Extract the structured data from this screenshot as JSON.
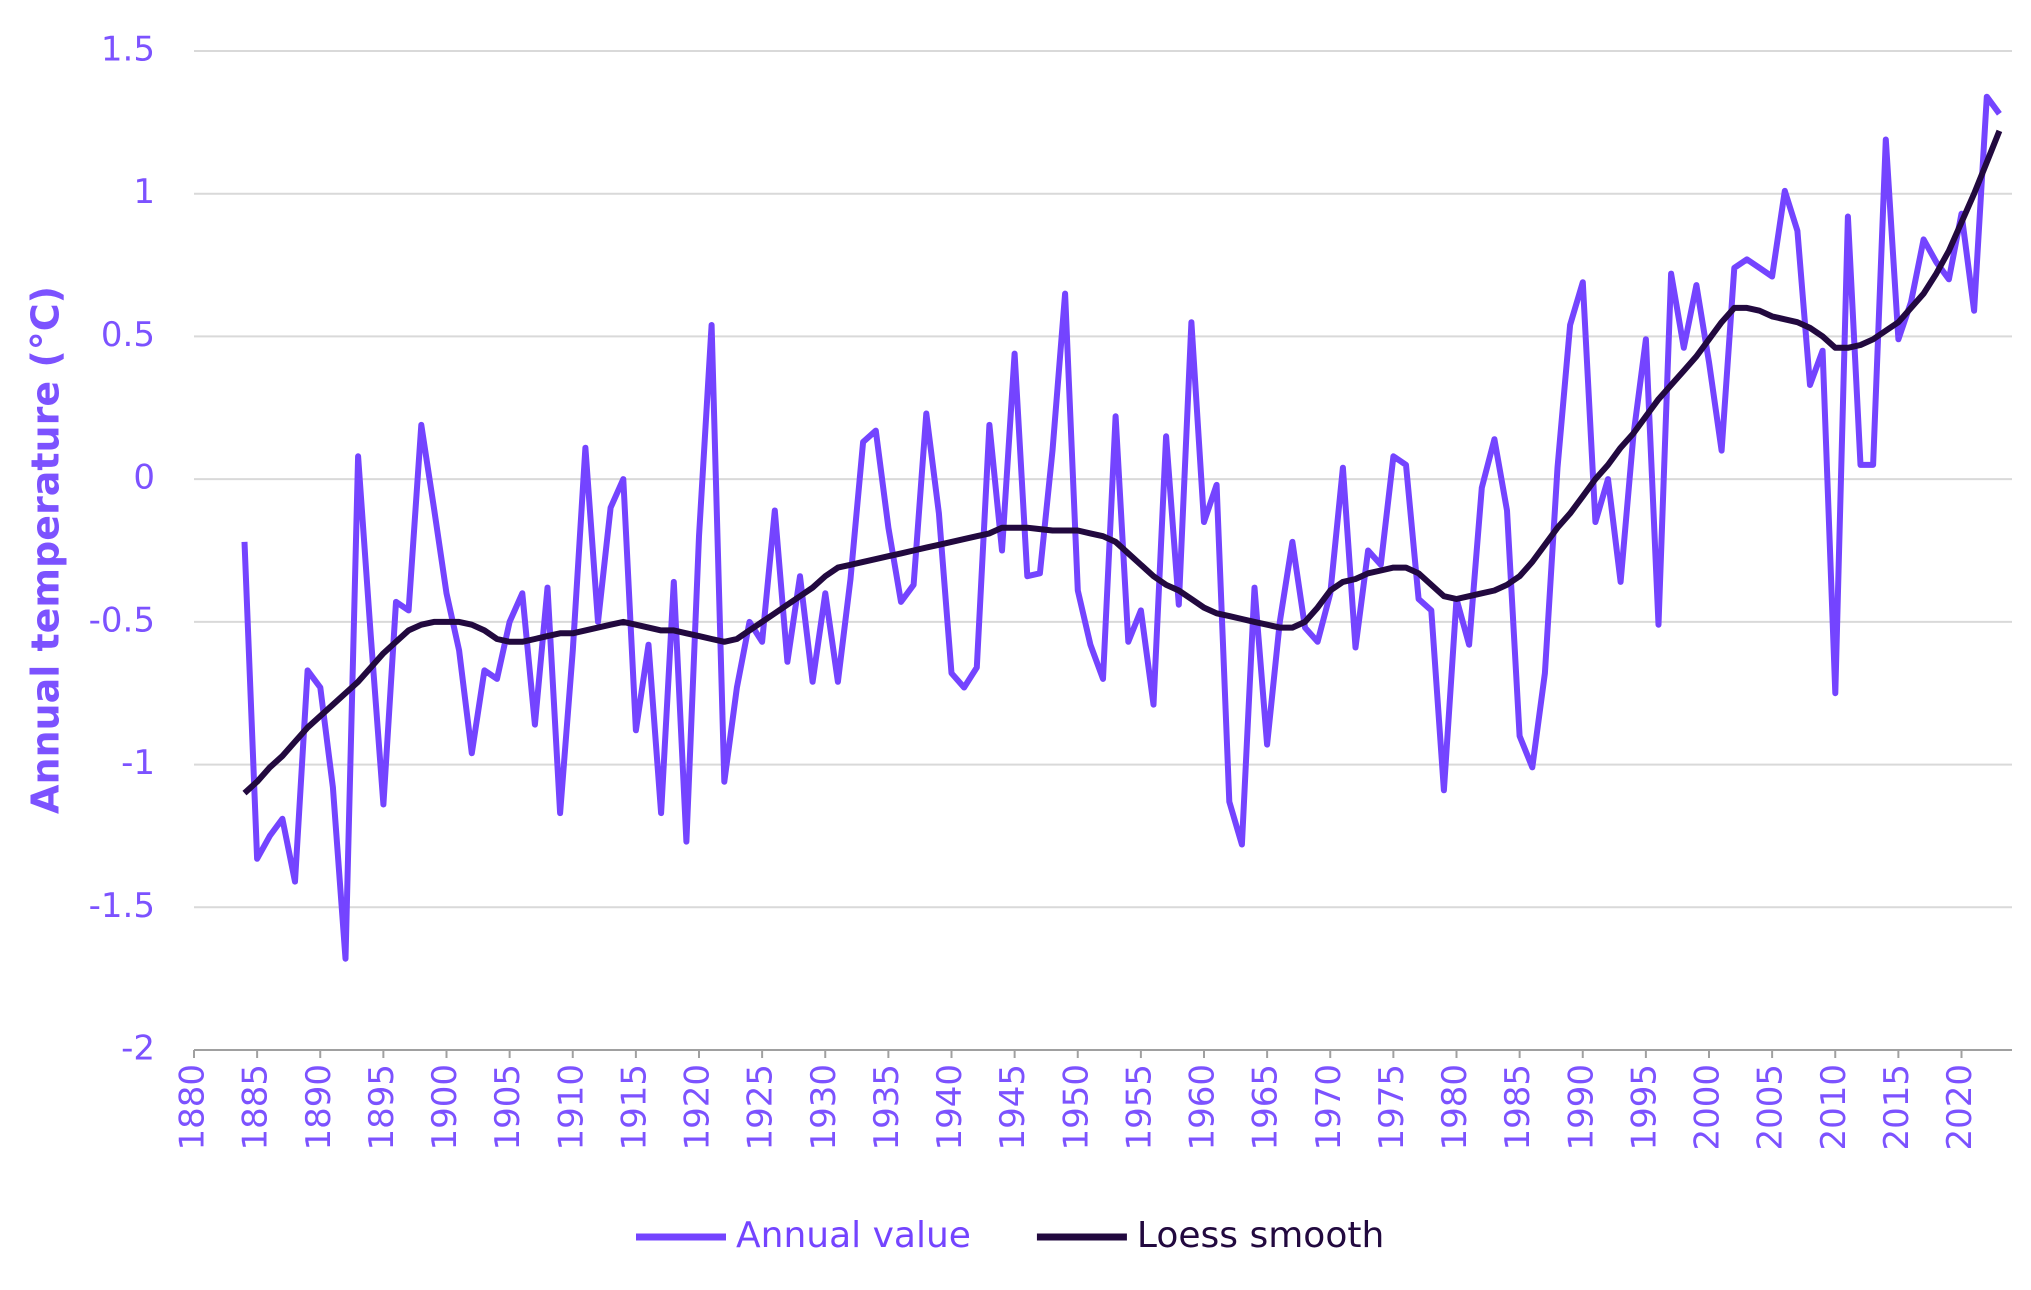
{
  "chart_data": {
    "type": "line",
    "y_label": "Annual temperature (°C)",
    "x": [
      1884,
      1885,
      1886,
      1887,
      1888,
      1889,
      1890,
      1891,
      1892,
      1893,
      1894,
      1895,
      1896,
      1897,
      1898,
      1899,
      1900,
      1901,
      1902,
      1903,
      1904,
      1905,
      1906,
      1907,
      1908,
      1909,
      1910,
      1911,
      1912,
      1913,
      1914,
      1915,
      1916,
      1917,
      1918,
      1919,
      1920,
      1921,
      1922,
      1923,
      1924,
      1925,
      1926,
      1927,
      1928,
      1929,
      1930,
      1931,
      1932,
      1933,
      1934,
      1935,
      1936,
      1937,
      1938,
      1939,
      1940,
      1941,
      1942,
      1943,
      1944,
      1945,
      1946,
      1947,
      1948,
      1949,
      1950,
      1951,
      1952,
      1953,
      1954,
      1955,
      1956,
      1957,
      1958,
      1959,
      1960,
      1961,
      1962,
      1963,
      1964,
      1965,
      1966,
      1967,
      1968,
      1969,
      1970,
      1971,
      1972,
      1973,
      1974,
      1975,
      1976,
      1977,
      1978,
      1979,
      1980,
      1981,
      1982,
      1983,
      1984,
      1985,
      1986,
      1987,
      1988,
      1989,
      1990,
      1991,
      1992,
      1993,
      1994,
      1995,
      1996,
      1997,
      1998,
      1999,
      2000,
      2001,
      2002,
      2003,
      2004,
      2005,
      2006,
      2007,
      2008,
      2009,
      2010,
      2011,
      2012,
      2013,
      2014,
      2015,
      2016,
      2017,
      2018,
      2019,
      2020,
      2021,
      2022,
      2023
    ],
    "series": [
      {
        "name": "Annual value",
        "color": "#7444ff",
        "values": [
          -0.22,
          -1.33,
          -1.25,
          -1.19,
          -1.41,
          -0.67,
          -0.73,
          -1.08,
          -1.68,
          0.08,
          -0.55,
          -1.14,
          -0.43,
          -0.46,
          0.19,
          -0.1,
          -0.4,
          -0.6,
          -0.96,
          -0.67,
          -0.7,
          -0.5,
          -0.4,
          -0.86,
          -0.38,
          -1.17,
          -0.6,
          0.11,
          -0.5,
          -0.1,
          0.0,
          -0.88,
          -0.58,
          -1.17,
          -0.36,
          -1.27,
          -0.2,
          0.54,
          -1.06,
          -0.73,
          -0.5,
          -0.57,
          -0.11,
          -0.64,
          -0.34,
          -0.71,
          -0.4,
          -0.71,
          -0.35,
          0.13,
          0.17,
          -0.17,
          -0.43,
          -0.37,
          0.23,
          -0.12,
          -0.68,
          -0.73,
          -0.66,
          0.19,
          -0.25,
          0.44,
          -0.34,
          -0.33,
          0.1,
          0.65,
          -0.39,
          -0.58,
          -0.7,
          0.22,
          -0.57,
          -0.46,
          -0.79,
          0.15,
          -0.44,
          0.55,
          -0.15,
          -0.02,
          -1.13,
          -1.28,
          -0.38,
          -0.93,
          -0.5,
          -0.22,
          -0.52,
          -0.57,
          -0.4,
          0.04,
          -0.59,
          -0.25,
          -0.3,
          0.08,
          0.05,
          -0.42,
          -0.46,
          -1.09,
          -0.42,
          -0.58,
          -0.03,
          0.14,
          -0.11,
          -0.9,
          -1.01,
          -0.68,
          0.04,
          0.54,
          0.69,
          -0.15,
          0.0,
          -0.36,
          0.15,
          0.49,
          -0.51,
          0.72,
          0.46,
          0.68,
          0.41,
          0.1,
          0.74,
          0.77,
          0.74,
          0.71,
          1.01,
          0.87,
          0.33,
          0.45,
          -0.75,
          0.92,
          0.05,
          0.05,
          1.19,
          0.49,
          0.62,
          0.84,
          0.76,
          0.7,
          0.93,
          0.59,
          1.34,
          1.28
        ]
      },
      {
        "name": "Loess smooth",
        "color": "#22093f",
        "values": [
          -1.1,
          -1.06,
          -1.01,
          -0.97,
          -0.92,
          -0.87,
          -0.83,
          -0.79,
          -0.75,
          -0.71,
          -0.66,
          -0.61,
          -0.57,
          -0.53,
          -0.51,
          -0.5,
          -0.5,
          -0.5,
          -0.51,
          -0.53,
          -0.56,
          -0.57,
          -0.57,
          -0.56,
          -0.55,
          -0.54,
          -0.54,
          -0.53,
          -0.52,
          -0.51,
          -0.5,
          -0.51,
          -0.52,
          -0.53,
          -0.53,
          -0.54,
          -0.55,
          -0.56,
          -0.57,
          -0.56,
          -0.53,
          -0.5,
          -0.47,
          -0.44,
          -0.41,
          -0.38,
          -0.34,
          -0.31,
          -0.3,
          -0.29,
          -0.28,
          -0.27,
          -0.26,
          -0.25,
          -0.24,
          -0.23,
          -0.22,
          -0.21,
          -0.2,
          -0.19,
          -0.17,
          -0.17,
          -0.17,
          -0.175,
          -0.18,
          -0.18,
          -0.18,
          -0.19,
          -0.2,
          -0.22,
          -0.26,
          -0.3,
          -0.34,
          -0.37,
          -0.39,
          -0.42,
          -0.45,
          -0.47,
          -0.48,
          -0.49,
          -0.5,
          -0.51,
          -0.52,
          -0.52,
          -0.5,
          -0.45,
          -0.39,
          -0.36,
          -0.35,
          -0.33,
          -0.32,
          -0.31,
          -0.31,
          -0.33,
          -0.37,
          -0.41,
          -0.42,
          -0.41,
          -0.4,
          -0.39,
          -0.37,
          -0.34,
          -0.29,
          -0.23,
          -0.17,
          -0.12,
          -0.06,
          0.0,
          0.05,
          0.11,
          0.16,
          0.22,
          0.28,
          0.33,
          0.38,
          0.43,
          0.49,
          0.55,
          0.6,
          0.6,
          0.59,
          0.57,
          0.56,
          0.55,
          0.53,
          0.5,
          0.46,
          0.46,
          0.47,
          0.49,
          0.52,
          0.55,
          0.6,
          0.65,
          0.72,
          0.8,
          0.9,
          1.0,
          1.11,
          1.22
        ]
      }
    ],
    "xlim": [
      1880,
      2024
    ],
    "xticks": [
      1880,
      1885,
      1890,
      1895,
      1900,
      1905,
      1910,
      1915,
      1920,
      1925,
      1930,
      1935,
      1940,
      1945,
      1950,
      1955,
      1960,
      1965,
      1970,
      1975,
      1980,
      1985,
      1990,
      1995,
      2000,
      2005,
      2010,
      2015,
      2020
    ],
    "ylim": [
      -2,
      1.5
    ],
    "yticks": [
      -2,
      -1.5,
      -1,
      -0.5,
      0,
      0.5,
      1,
      1.5
    ],
    "grid": true,
    "legend": "bottom"
  }
}
